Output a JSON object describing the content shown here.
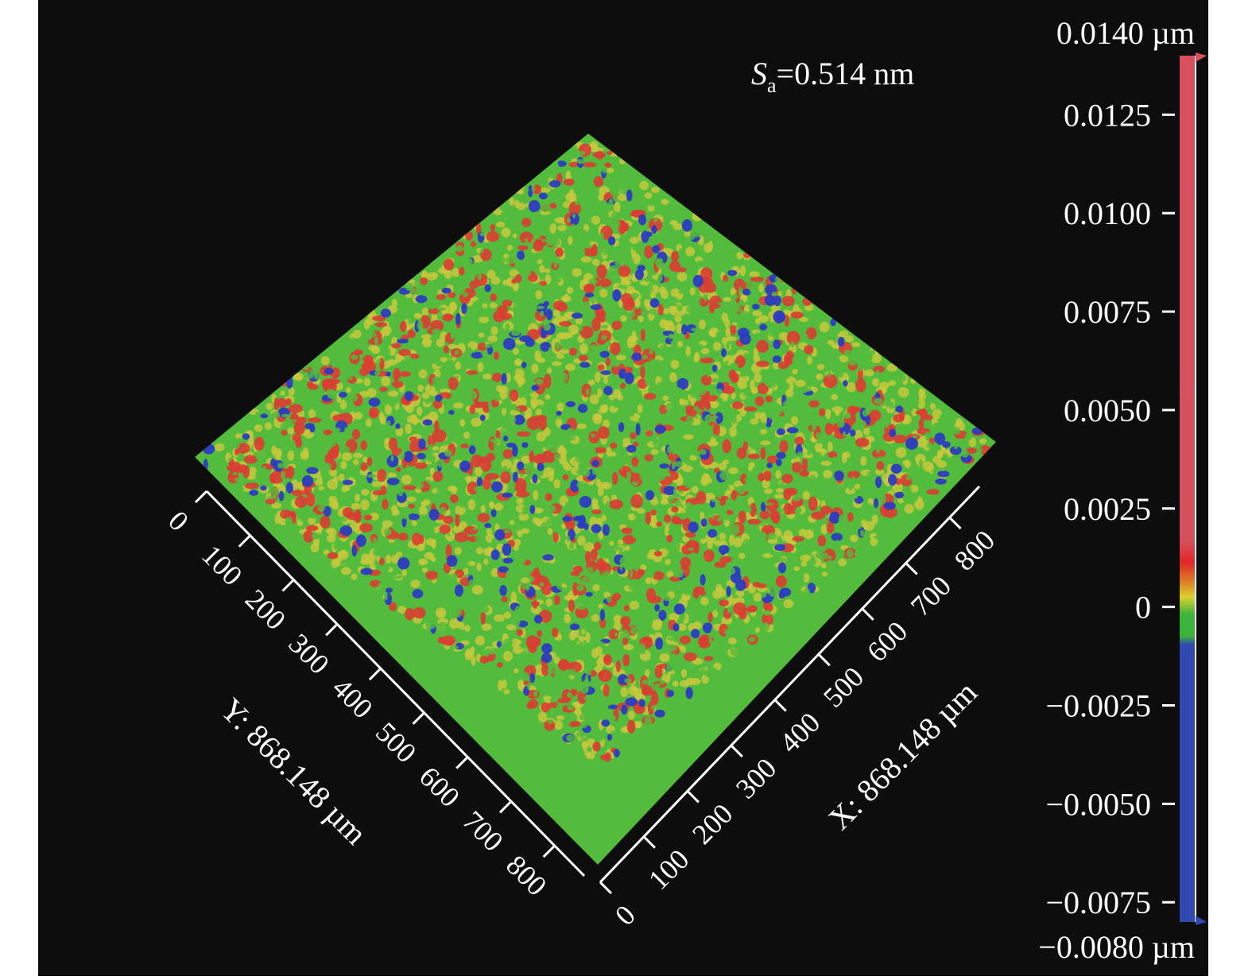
{
  "chart_data": {
    "type": "heatmap",
    "title": "",
    "annotation": {
      "symbol": "S",
      "subscript": "a",
      "rest": "=0.514 nm"
    },
    "x_axis": {
      "label": "X: 868.148 µm",
      "ticks": [
        "0",
        "100",
        "200",
        "300",
        "400",
        "500",
        "600",
        "700",
        "800"
      ],
      "tick_values": [
        0,
        100,
        200,
        300,
        400,
        500,
        600,
        700,
        800
      ],
      "range": [
        0,
        868.148
      ],
      "unit": "µm"
    },
    "y_axis": {
      "label": "Y: 868.148 µm",
      "ticks": [
        "0",
        "100",
        "200",
        "300",
        "400",
        "500",
        "600",
        "700",
        "800"
      ],
      "tick_values": [
        0,
        100,
        200,
        300,
        400,
        500,
        600,
        700,
        800
      ],
      "range": [
        0,
        868.148
      ],
      "unit": "µm"
    },
    "colorbar": {
      "max_label": "0.0140 µm",
      "min_label": "−0.0080 µm",
      "range": [
        -0.008,
        0.014
      ],
      "ticks": [
        "0.0125",
        "0.0100",
        "0.0075",
        "0.0050",
        "0.0025",
        "0",
        "−0.0025",
        "−0.0050",
        "−0.0075"
      ],
      "tick_values": [
        0.0125,
        0.01,
        0.0075,
        0.005,
        0.0025,
        0,
        -0.0025,
        -0.005,
        -0.0075
      ],
      "colors": {
        "high": "#d8505e",
        "peak": "#e02828",
        "mid_yellow": "#dcd030",
        "mid_green": "#3cb43c",
        "low": "#3048b0"
      }
    },
    "surface_colors": {
      "green": "#54bc3c",
      "yellow": "#c8c83c",
      "red": "#dc3c32",
      "blue": "#2c3cc0"
    }
  }
}
